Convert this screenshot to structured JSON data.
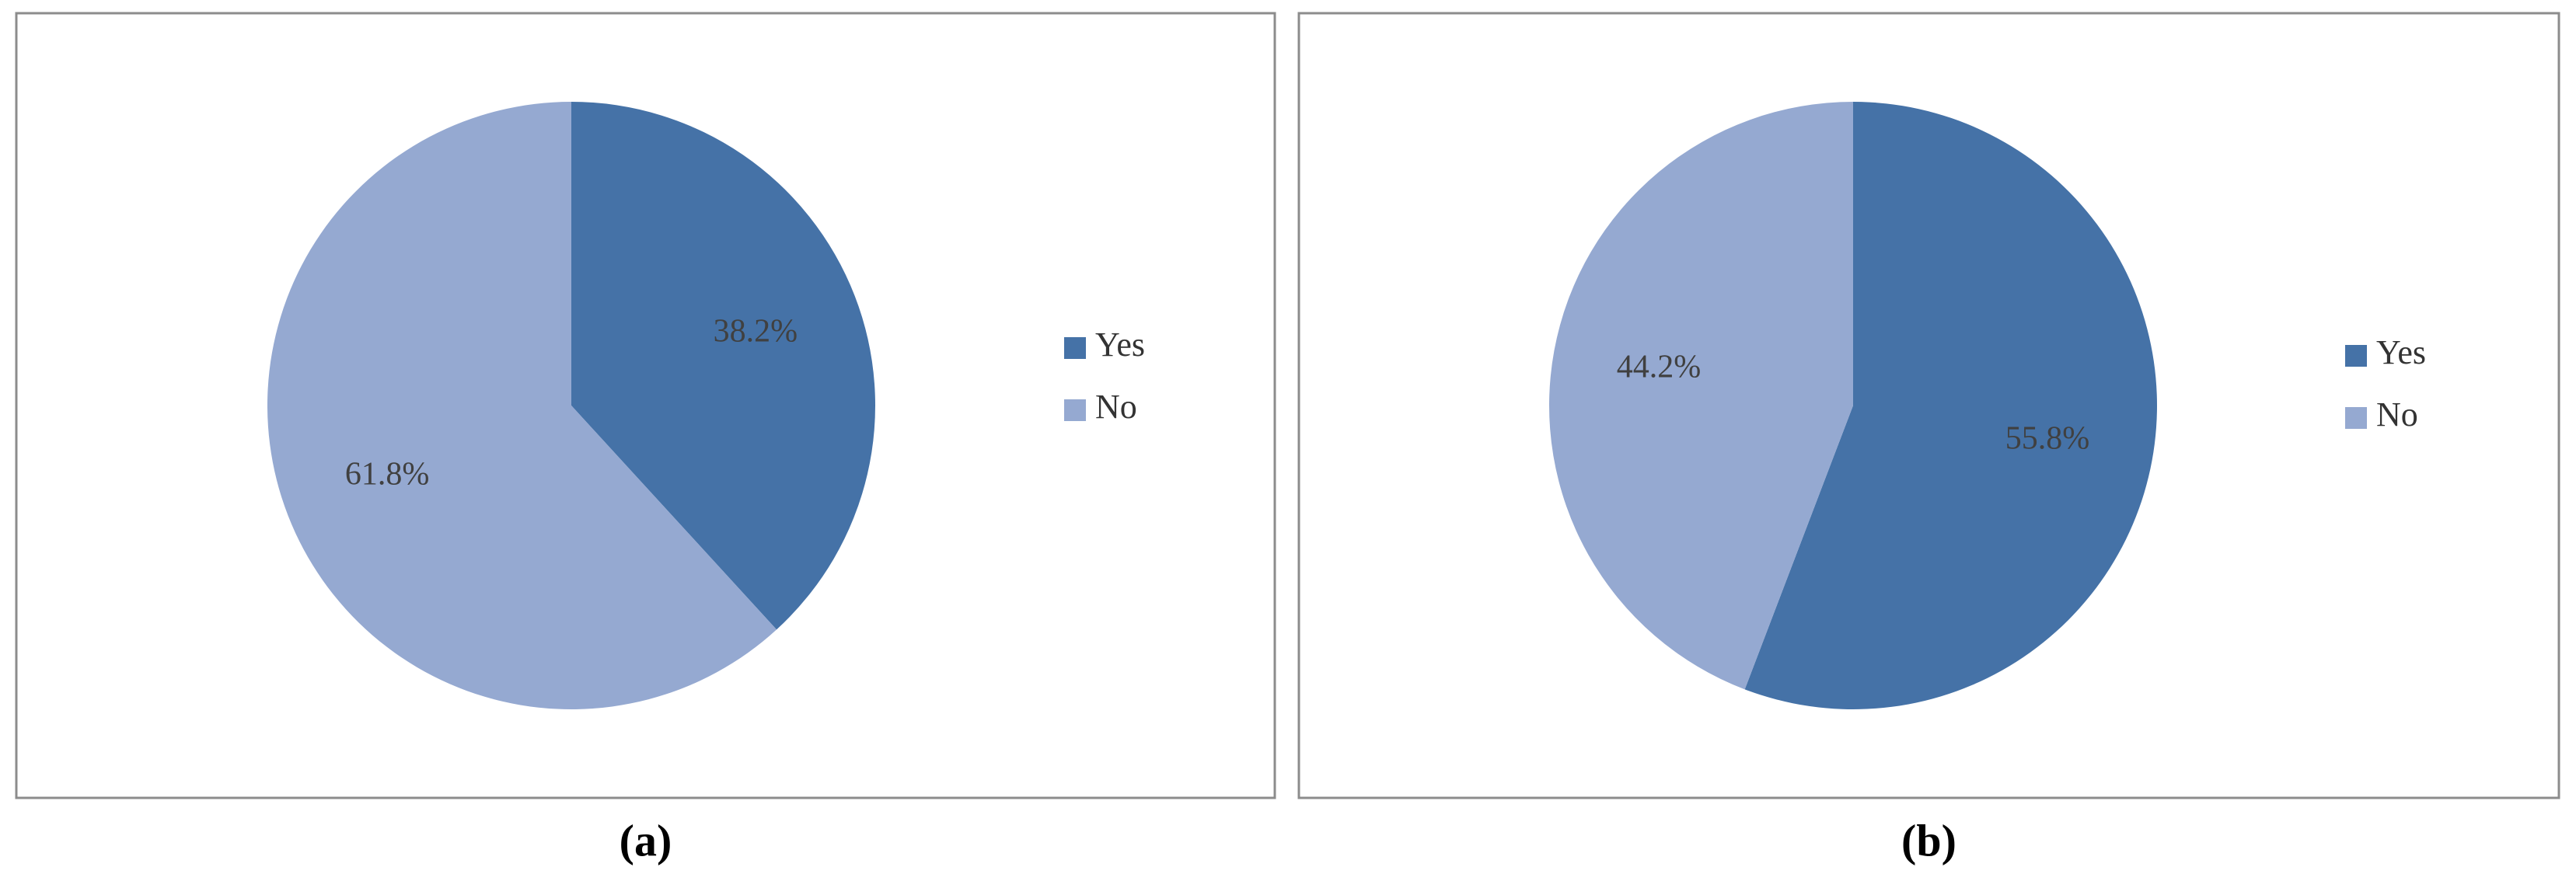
{
  "chart_data": [
    {
      "type": "pie",
      "categories": [
        "Yes",
        "No"
      ],
      "values": [
        38.2,
        61.8
      ],
      "value_labels": [
        "38.2%",
        "61.8%"
      ],
      "colors": [
        "#4572a7",
        "#95a9d1"
      ],
      "caption": "(a)",
      "legend": "right"
    },
    {
      "type": "pie",
      "categories": [
        "Yes",
        "No"
      ],
      "values": [
        55.8,
        44.2
      ],
      "value_labels": [
        "55.8%",
        "44.2%"
      ],
      "colors": [
        "#4572a7",
        "#95a9d1"
      ],
      "caption": "(b)",
      "legend": "right"
    }
  ]
}
